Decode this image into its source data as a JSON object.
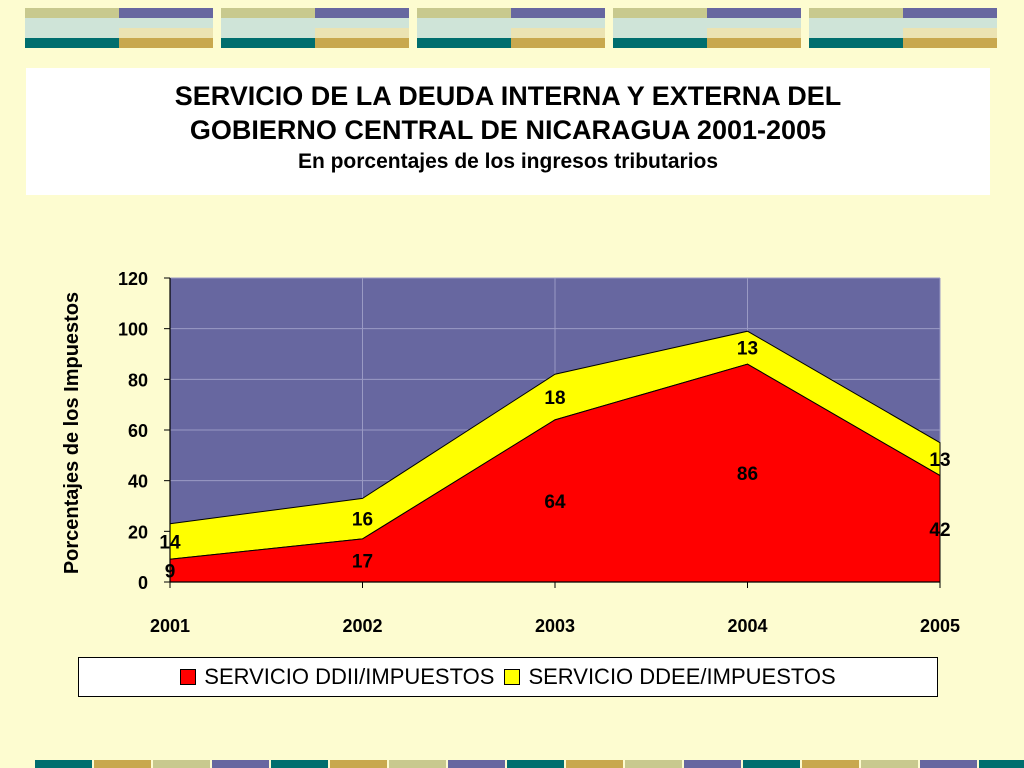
{
  "title": {
    "line1": "SERVICIO DE LA DEUDA INTERNA Y EXTERNA DEL",
    "line2": "GOBIERNO CENTRAL DE NICARAGUA 2001-2005",
    "subtitle": "En porcentajes de los ingresos tributarios"
  },
  "colors": {
    "background": "#fdfcd0",
    "plot_area": "#6767a0",
    "ddii": "#ff0000",
    "ddee": "#ffff00",
    "deco_olive": "#c8c98e",
    "deco_periwinkle": "#6767a0",
    "deco_teal": "#006e6e",
    "deco_tan": "#c8a84e",
    "deco_mint": "#cfe4d8",
    "deco_cream": "#ebe3b2"
  },
  "chart_data": {
    "type": "area",
    "stacked": true,
    "x": [
      "2001",
      "2002",
      "2003",
      "2004",
      "2005"
    ],
    "series": [
      {
        "name": "SERVICIO DDII/IMPUESTOS",
        "values": [
          9,
          17,
          64,
          86,
          42
        ],
        "color": "#ff0000"
      },
      {
        "name": "SERVICIO DDEE/IMPUESTOS",
        "values": [
          14,
          16,
          18,
          13,
          13
        ],
        "color": "#ffff00"
      }
    ],
    "ylabel": "Porcentajes de los Impuestos",
    "xlabel": "",
    "ylim": [
      0,
      120
    ],
    "yticks": [
      0,
      20,
      40,
      60,
      80,
      100,
      120
    ],
    "grid": true,
    "legend_position": "bottom"
  }
}
